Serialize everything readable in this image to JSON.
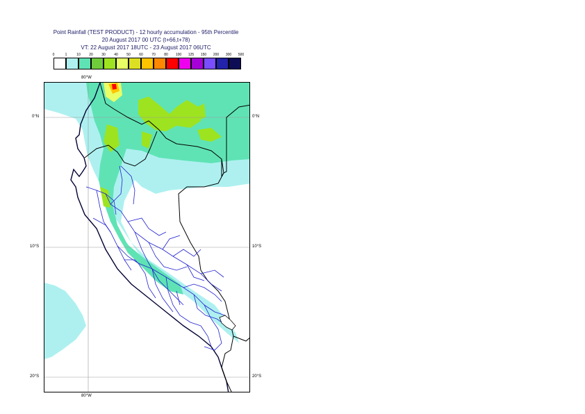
{
  "title": {
    "line1": "Point Rainfall (TEST PRODUCT) - 12 hourly accumulation - 95th Percentile",
    "line2": "20 August 2017 00 UTC (t+66,t+78)",
    "line3": "VT: 22 August 2017 18UTC - 23 August 2017 06UTC"
  },
  "legend": {
    "ticks": [
      "0",
      "1",
      "10",
      "20",
      "30",
      "40",
      "50",
      "60",
      "70",
      "80",
      "100",
      "125",
      "150",
      "200",
      "300",
      "500"
    ],
    "colors": [
      "#ffffff",
      "#aef0f0",
      "#5fe3b5",
      "#6fcc3b",
      "#9ee31f",
      "#e8ff66",
      "#dde022",
      "#ffc400",
      "#ff8800",
      "#ff0000",
      "#ee00ee",
      "#a600d9",
      "#7a4dff",
      "#2222aa",
      "#0d0d55"
    ]
  },
  "map": {
    "lon_label_top": "80°W",
    "lon_label_bottom": "80°W",
    "lat_labels_left": [
      "0°N",
      "10°S",
      "20°S"
    ],
    "lat_labels_right": [
      "0°N",
      "10°S",
      "20°S"
    ]
  }
}
